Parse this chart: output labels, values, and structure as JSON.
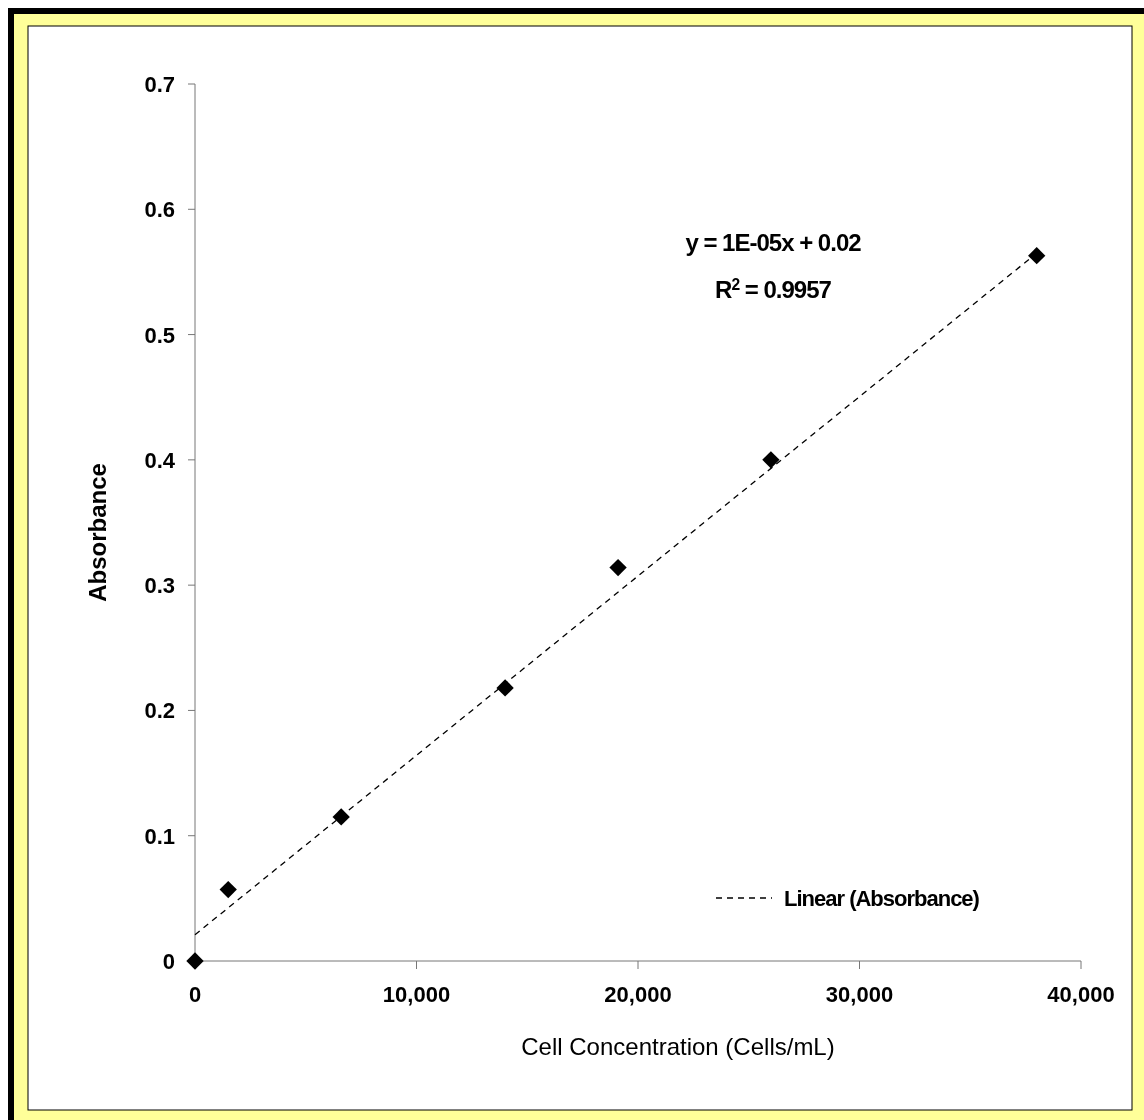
{
  "chart_data": {
    "type": "scatter",
    "xlabel": "Cell Concentration (Cells/mL)",
    "ylabel": "Absorbance",
    "x": [
      0,
      1500,
      6600,
      14000,
      19100,
      26000,
      38000
    ],
    "series": [
      {
        "color": "#000000",
        "marker": "diamond",
        "values": [
          0,
          0.057,
          0.115,
          0.218,
          0.314,
          0.4,
          0.563
        ]
      },
      {
        "type": "line",
        "name": "Linear (Absorbance)",
        "color": "#000000",
        "line_style": "dashed",
        "marker": "none",
        "x": [
          0,
          38000
        ],
        "values": [
          0.021,
          0.565
        ]
      }
    ],
    "xlim": [
      0,
      40000
    ],
    "xticks": [
      {
        "value": 0,
        "label": "0"
      },
      {
        "value": 10000,
        "label": "10,000"
      },
      {
        "value": 20000,
        "label": "20,000"
      },
      {
        "value": 30000,
        "label": "30,000"
      },
      {
        "value": 40000,
        "label": "40,000"
      }
    ],
    "ylim": [
      0,
      0.7
    ],
    "yticks": [
      0,
      0.1,
      0.2,
      0.3,
      0.4,
      0.5,
      0.6,
      0.7
    ],
    "grid": false,
    "legend": "bottom right",
    "annotations": [
      "y = 1E-05x + 0.02",
      "R$^{2}$ = 0.9957"
    ]
  }
}
